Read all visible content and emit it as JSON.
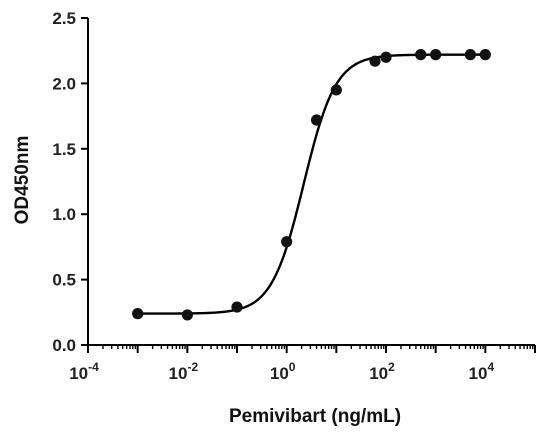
{
  "chart_data": {
    "type": "scatter",
    "xlabel": "Pemivibart (ng/mL)",
    "ylabel": "OD450nm",
    "xscale": "log",
    "xlim": [
      0.0001,
      100000
    ],
    "ylim": [
      0,
      2.5
    ],
    "x_ticks": [
      {
        "base": "10",
        "exp": "-4",
        "value": 0.0001
      },
      {
        "base": "10",
        "exp": "-2",
        "value": 0.01
      },
      {
        "base": "10",
        "exp": "0",
        "value": 1
      },
      {
        "base": "10",
        "exp": "2",
        "value": 100
      },
      {
        "base": "10",
        "exp": "4",
        "value": 10000
      }
    ],
    "y_ticks": [
      "0.0",
      "0.5",
      "1.0",
      "1.5",
      "2.0",
      "2.5"
    ],
    "grid": false,
    "series": [
      {
        "points": [
          {
            "x": 0.001,
            "y": 0.24
          },
          {
            "x": 0.01,
            "y": 0.23
          },
          {
            "x": 0.1,
            "y": 0.29
          },
          {
            "x": 1,
            "y": 0.79
          },
          {
            "x": 4,
            "y": 1.72
          },
          {
            "x": 10,
            "y": 1.95
          },
          {
            "x": 60,
            "y": 2.17
          },
          {
            "x": 100,
            "y": 2.2
          },
          {
            "x": 500,
            "y": 2.22
          },
          {
            "x": 1000,
            "y": 2.22
          },
          {
            "x": 5000,
            "y": 2.22
          },
          {
            "x": 10000,
            "y": 2.22
          }
        ],
        "fit": {
          "model": "4PL",
          "bottom": 0.24,
          "top": 2.22,
          "ec50": 2.2,
          "hill": 1.35
        },
        "color": "#000000"
      }
    ]
  }
}
